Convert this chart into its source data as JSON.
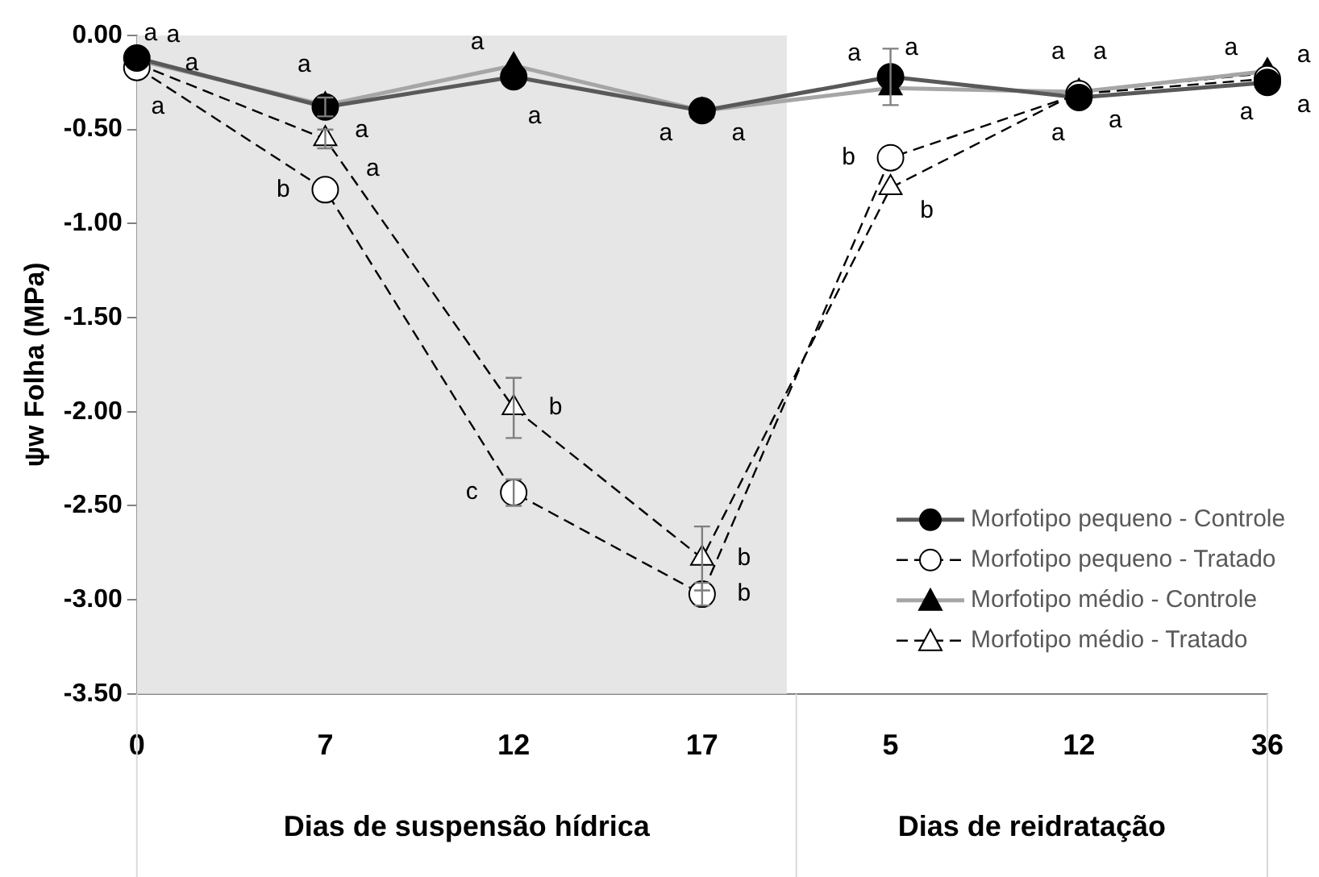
{
  "chart_data": {
    "type": "line",
    "ylabel": "ψw Folha (MPa)",
    "categories": [
      "0",
      "7",
      "12",
      "17",
      "5",
      "12",
      "36"
    ],
    "series": [
      {
        "name": "Morfotipo pequeno - Controle",
        "color": "#595959",
        "marker": "circle",
        "line_style": "solid",
        "values": [
          -0.12,
          -0.38,
          -0.22,
          -0.4,
          -0.22,
          -0.33,
          -0.25
        ],
        "errors": [
          null,
          0.05,
          null,
          null,
          0.15,
          null,
          null
        ],
        "value_labels": [
          "a",
          "a",
          "a",
          "a",
          "a",
          "a",
          "a"
        ]
      },
      {
        "name": "Morfotipo pequeno - Tratado",
        "color": "#000000",
        "marker": "circle",
        "line_style": "dashed",
        "values": [
          -0.17,
          -0.82,
          -2.43,
          -2.97,
          -0.65,
          -0.31,
          -0.23
        ],
        "errors": [
          null,
          null,
          0.07,
          0.06,
          null,
          null,
          null
        ],
        "value_labels": [
          "a",
          "b",
          "c",
          "b",
          "b",
          "a",
          "a"
        ]
      },
      {
        "name": "Morfotipo médio - Controle",
        "color": "#a6a6a6",
        "marker": "triangle",
        "line_style": "solid",
        "values": [
          -0.13,
          -0.37,
          -0.16,
          -0.4,
          -0.28,
          -0.3,
          -0.19
        ],
        "errors": [
          null,
          null,
          null,
          null,
          null,
          null,
          null
        ],
        "value_labels": [
          "a",
          "a",
          "a",
          "a",
          "a",
          "a",
          "a"
        ]
      },
      {
        "name": "Morfotipo médio - Tratado",
        "color": "#000000",
        "marker": "triangle",
        "line_style": "dashed",
        "values": [
          -0.15,
          -0.55,
          -1.98,
          -2.78,
          -0.81,
          -0.3,
          -0.2
        ],
        "errors": [
          null,
          0.05,
          0.16,
          0.17,
          null,
          null,
          null
        ],
        "value_labels": [
          "a",
          "a",
          "b",
          "b",
          "b",
          "a",
          "a"
        ]
      }
    ],
    "ylim": [
      -3.5,
      0
    ],
    "yticks": [
      {
        "value": -3.5,
        "label": "-3.50"
      },
      {
        "value": -3,
        "label": "-3.00"
      },
      {
        "value": -2.5,
        "label": "-2.50"
      },
      {
        "value": -2,
        "label": "-2.00"
      },
      {
        "value": -1.5,
        "label": "-1.50"
      },
      {
        "value": -1,
        "label": "-1.00"
      },
      {
        "value": -0.5,
        "label": "-0.50"
      },
      {
        "value": 0,
        "label": "0.00"
      }
    ],
    "bands": [
      {
        "axis": "x",
        "from": "0",
        "to": "17",
        "color": "#e6e6e6"
      }
    ],
    "annotations": [
      "Dias de suspensão hídrica",
      "Dias de reidratação"
    ],
    "grid": false,
    "legend": "bottom right"
  }
}
